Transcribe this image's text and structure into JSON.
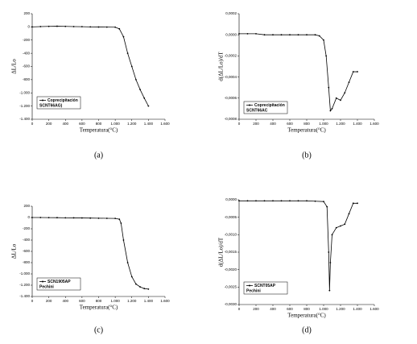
{
  "chart_data": [
    {
      "type": "line",
      "caption": "(a)",
      "xlabel": "Temperatura(°C)",
      "ylabel": "ΔL/Lo",
      "legend_note": "SCNT66AG)",
      "x": [
        0,
        100,
        200,
        300,
        400,
        500,
        600,
        700,
        800,
        900,
        1000,
        1050,
        1100,
        1150,
        1200,
        1250,
        1300,
        1350,
        1400
      ],
      "series": [
        {
          "name": "Coprecipitación",
          "color": "#000000",
          "values": [
            0,
            5,
            8,
            10,
            8,
            5,
            3,
            0,
            -2,
            -3,
            -5,
            -30,
            -150,
            -400,
            -600,
            -800,
            -950,
            -1080,
            -1200
          ]
        }
      ],
      "xlim": [
        0,
        1600
      ],
      "xticks": [
        0,
        200,
        400,
        600,
        800,
        {
          "value": 1000,
          "label": "1.000"
        },
        {
          "value": 1200,
          "label": "1.200"
        },
        {
          "value": 1400,
          "label": "1.400"
        },
        {
          "value": 1600,
          "label": "1.600"
        }
      ],
      "ylim": [
        -1400,
        200
      ],
      "yticks": [
        {
          "value": -1400,
          "label": "-1.400"
        },
        {
          "value": -1200,
          "label": "-1.200"
        },
        {
          "value": -1000,
          "label": "-1.000"
        },
        -800,
        -600,
        -400,
        -200,
        0,
        200
      ]
    },
    {
      "type": "line",
      "caption": "(b)",
      "xlabel": "Temperatura(°C)",
      "ylabel": "d(ΔL/Lo)/dT",
      "legend_note": "SCNT66AC",
      "x": [
        0,
        100,
        200,
        300,
        400,
        500,
        600,
        700,
        800,
        900,
        950,
        1000,
        1030,
        1060,
        1080,
        1100,
        1150,
        1200,
        1250,
        1300,
        1350,
        1400
      ],
      "series": [
        {
          "name": "Coprecipitación",
          "color": "#000000",
          "values": [
            1e-05,
            1e-05,
            1e-05,
            0.0,
            0.0,
            0.0,
            0.0,
            0.0,
            0.0,
            0.0,
            -1e-05,
            -5e-05,
            -0.0002,
            -0.0005,
            -0.00072,
            -0.0007,
            -0.0006,
            -0.00062,
            -0.00055,
            -0.00045,
            -0.00035,
            -0.00035
          ]
        }
      ],
      "xlim": [
        0,
        1600
      ],
      "xticks": [
        0,
        200,
        400,
        600,
        800,
        {
          "value": 1000,
          "label": "1.000"
        },
        {
          "value": 1200,
          "label": "1.200"
        },
        {
          "value": 1400,
          "label": "1.400"
        },
        {
          "value": 1600,
          "label": "1.600"
        }
      ],
      "ylim": [
        -0.0008,
        0.0002
      ],
      "yticks": [
        {
          "value": -0.0008,
          "label": "-0,0008"
        },
        {
          "value": -0.0006,
          "label": "-0,0006"
        },
        {
          "value": -0.0004,
          "label": "-0,0004"
        },
        {
          "value": -0.0002,
          "label": "-0,0002"
        },
        {
          "value": 0,
          "label": "0,0000"
        },
        {
          "value": 0.0002,
          "label": "0,0002"
        }
      ]
    },
    {
      "type": "line",
      "caption": "(c)",
      "xlabel": "Temperatura(°C)",
      "ylabel": "ΔL/Lo",
      "legend_note": "Pechini",
      "x": [
        0,
        100,
        200,
        300,
        400,
        500,
        600,
        700,
        800,
        900,
        1000,
        1050,
        1070,
        1100,
        1150,
        1200,
        1250,
        1300,
        1350,
        1400
      ],
      "series": [
        {
          "name": "SCN1905AP",
          "color": "#000000",
          "values": [
            0,
            0,
            -2,
            -3,
            -5,
            -6,
            -8,
            -10,
            -12,
            -14,
            -16,
            -30,
            -100,
            -400,
            -800,
            -1050,
            -1180,
            -1230,
            -1260,
            -1270
          ]
        }
      ],
      "xlim": [
        0,
        1600
      ],
      "xticks": [
        0,
        200,
        400,
        600,
        800,
        {
          "value": 1000,
          "label": "1.000"
        },
        {
          "value": 1200,
          "label": "1.200"
        },
        {
          "value": 1400,
          "label": "1.400"
        },
        {
          "value": 1600,
          "label": "1.600"
        }
      ],
      "ylim": [
        -1400,
        200
      ],
      "yticks": [
        {
          "value": -1400,
          "label": "-1.400"
        },
        {
          "value": -1200,
          "label": "-1.200"
        },
        {
          "value": -1000,
          "label": "-1.000"
        },
        -800,
        -600,
        -400,
        -200,
        0,
        200
      ]
    },
    {
      "type": "line",
      "caption": "(d)",
      "xlabel": "Temperatura(°C)",
      "ylabel": "d(ΔL/Lo)/dT",
      "legend_note": "Pechini",
      "x": [
        0,
        100,
        200,
        300,
        400,
        500,
        600,
        700,
        800,
        900,
        1000,
        1040,
        1060,
        1070,
        1080,
        1100,
        1150,
        1200,
        1250,
        1300,
        1350,
        1400
      ],
      "series": [
        {
          "name": "SCNT05AP",
          "color": "#000000",
          "values": [
            -3e-05,
            -3e-05,
            -3e-05,
            -3e-05,
            -3e-05,
            -3e-05,
            -3e-05,
            -3e-05,
            -3e-05,
            -4e-05,
            -5e-05,
            -0.0002,
            -0.0015,
            -0.0026,
            -0.0018,
            -0.001,
            -0.0008,
            -0.00075,
            -0.0007,
            -0.0004,
            -0.0001,
            -0.0001
          ]
        }
      ],
      "xlim": [
        0,
        1600
      ],
      "xticks": [
        0,
        200,
        400,
        600,
        800,
        {
          "value": 1000,
          "label": "1.000"
        },
        {
          "value": 1200,
          "label": "1.200"
        },
        {
          "value": 1400,
          "label": "1.400"
        },
        {
          "value": 1600,
          "label": "1.600"
        }
      ],
      "ylim": [
        -0.003,
        0
      ],
      "yticks": [
        {
          "value": -0.003,
          "label": "-0,0030"
        },
        {
          "value": -0.0025,
          "label": "-0,0025"
        },
        {
          "value": -0.002,
          "label": "-0,0020"
        },
        {
          "value": -0.0015,
          "label": "-0,0015"
        },
        {
          "value": -0.001,
          "label": "-0,0010"
        },
        {
          "value": -0.0005,
          "label": "-0,0005"
        },
        {
          "value": 0,
          "label": "0,0000"
        }
      ]
    }
  ]
}
